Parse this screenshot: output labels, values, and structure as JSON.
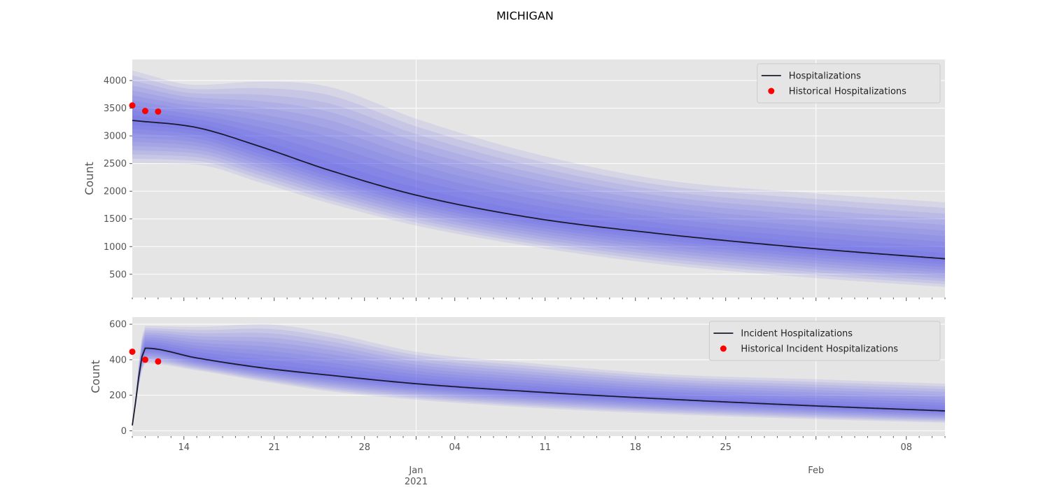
{
  "figure": {
    "title": "MICHIGAN"
  },
  "colors": {
    "axes_bg": "#e5e5e5",
    "grid": "#ffffff",
    "band": "#4a4af0",
    "median": "#1a1a2e",
    "historical": "#ff0000",
    "tick_text": "#555555"
  },
  "x_axis": {
    "range": [
      "2020-12-10",
      "2021-02-11"
    ],
    "major_ticks": [
      {
        "date": "2021-01-01",
        "label": "Jan",
        "sublabel": "2021"
      },
      {
        "date": "2021-02-01",
        "label": "Feb",
        "sublabel": ""
      }
    ],
    "minor_labels": [
      {
        "date": "2020-12-14",
        "label": "14"
      },
      {
        "date": "2020-12-21",
        "label": "21"
      },
      {
        "date": "2020-12-28",
        "label": "28"
      },
      {
        "date": "2021-01-04",
        "label": "04"
      },
      {
        "date": "2021-01-11",
        "label": "11"
      },
      {
        "date": "2021-01-18",
        "label": "18"
      },
      {
        "date": "2021-01-25",
        "label": "25"
      },
      {
        "date": "2021-02-08",
        "label": "08"
      }
    ]
  },
  "chart_data": [
    {
      "type": "area",
      "xlabel": "",
      "ylabel": "Count",
      "ylim": [
        80,
        4380
      ],
      "yticks": [
        500,
        1000,
        1500,
        2000,
        2500,
        3000,
        3500,
        4000
      ],
      "grid": true,
      "legend": {
        "placement": "top-right",
        "entries": [
          {
            "name": "Hospitalizations",
            "kind": "line"
          },
          {
            "name": "Historical Hospitalizations",
            "kind": "dot"
          }
        ]
      },
      "median_name": "Hospitalizations",
      "historical_name": "Historical Hospitalizations",
      "x": [
        "2020-12-10",
        "2020-12-15",
        "2020-12-20",
        "2020-12-25",
        "2021-01-01",
        "2021-01-10",
        "2021-01-20",
        "2021-02-01",
        "2021-02-11"
      ],
      "median": [
        3280,
        3150,
        2800,
        2400,
        1930,
        1520,
        1230,
        960,
        780
      ],
      "upper_90": [
        4180,
        3920,
        3980,
        3900,
        3310,
        2690,
        2210,
        1960,
        1800
      ],
      "lower_90": [
        2510,
        2480,
        2150,
        1800,
        1380,
        1000,
        680,
        430,
        270
      ],
      "historical": [
        {
          "x": "2020-12-10",
          "y": 3550
        },
        {
          "x": "2020-12-11",
          "y": 3450
        },
        {
          "x": "2020-12-12",
          "y": 3440
        }
      ]
    },
    {
      "type": "area",
      "xlabel": "",
      "ylabel": "Count",
      "ylim": [
        -30,
        640
      ],
      "yticks": [
        0,
        200,
        400,
        600
      ],
      "grid": true,
      "legend": {
        "placement": "top-right",
        "entries": [
          {
            "name": "Incident Hospitalizations",
            "kind": "line"
          },
          {
            "name": "Historical Incident Hospitalizations",
            "kind": "dot"
          }
        ]
      },
      "median_name": "Incident Hospitalizations",
      "historical_name": "Historical Incident Hospitalizations",
      "x": [
        "2020-12-10",
        "2020-12-11",
        "2020-12-15",
        "2020-12-20",
        "2020-12-25",
        "2021-01-01",
        "2021-01-10",
        "2021-01-20",
        "2021-02-01",
        "2021-02-11"
      ],
      "median": [
        30,
        465,
        410,
        355,
        315,
        265,
        220,
        180,
        140,
        112
      ],
      "upper_90": [
        30,
        590,
        585,
        600,
        555,
        445,
        380,
        320,
        290,
        265
      ],
      "lower_90": [
        30,
        380,
        340,
        280,
        225,
        175,
        130,
        95,
        65,
        45
      ],
      "historical": [
        {
          "x": "2020-12-10",
          "y": 445
        },
        {
          "x": "2020-12-11",
          "y": 400
        },
        {
          "x": "2020-12-12",
          "y": 390
        }
      ]
    }
  ]
}
